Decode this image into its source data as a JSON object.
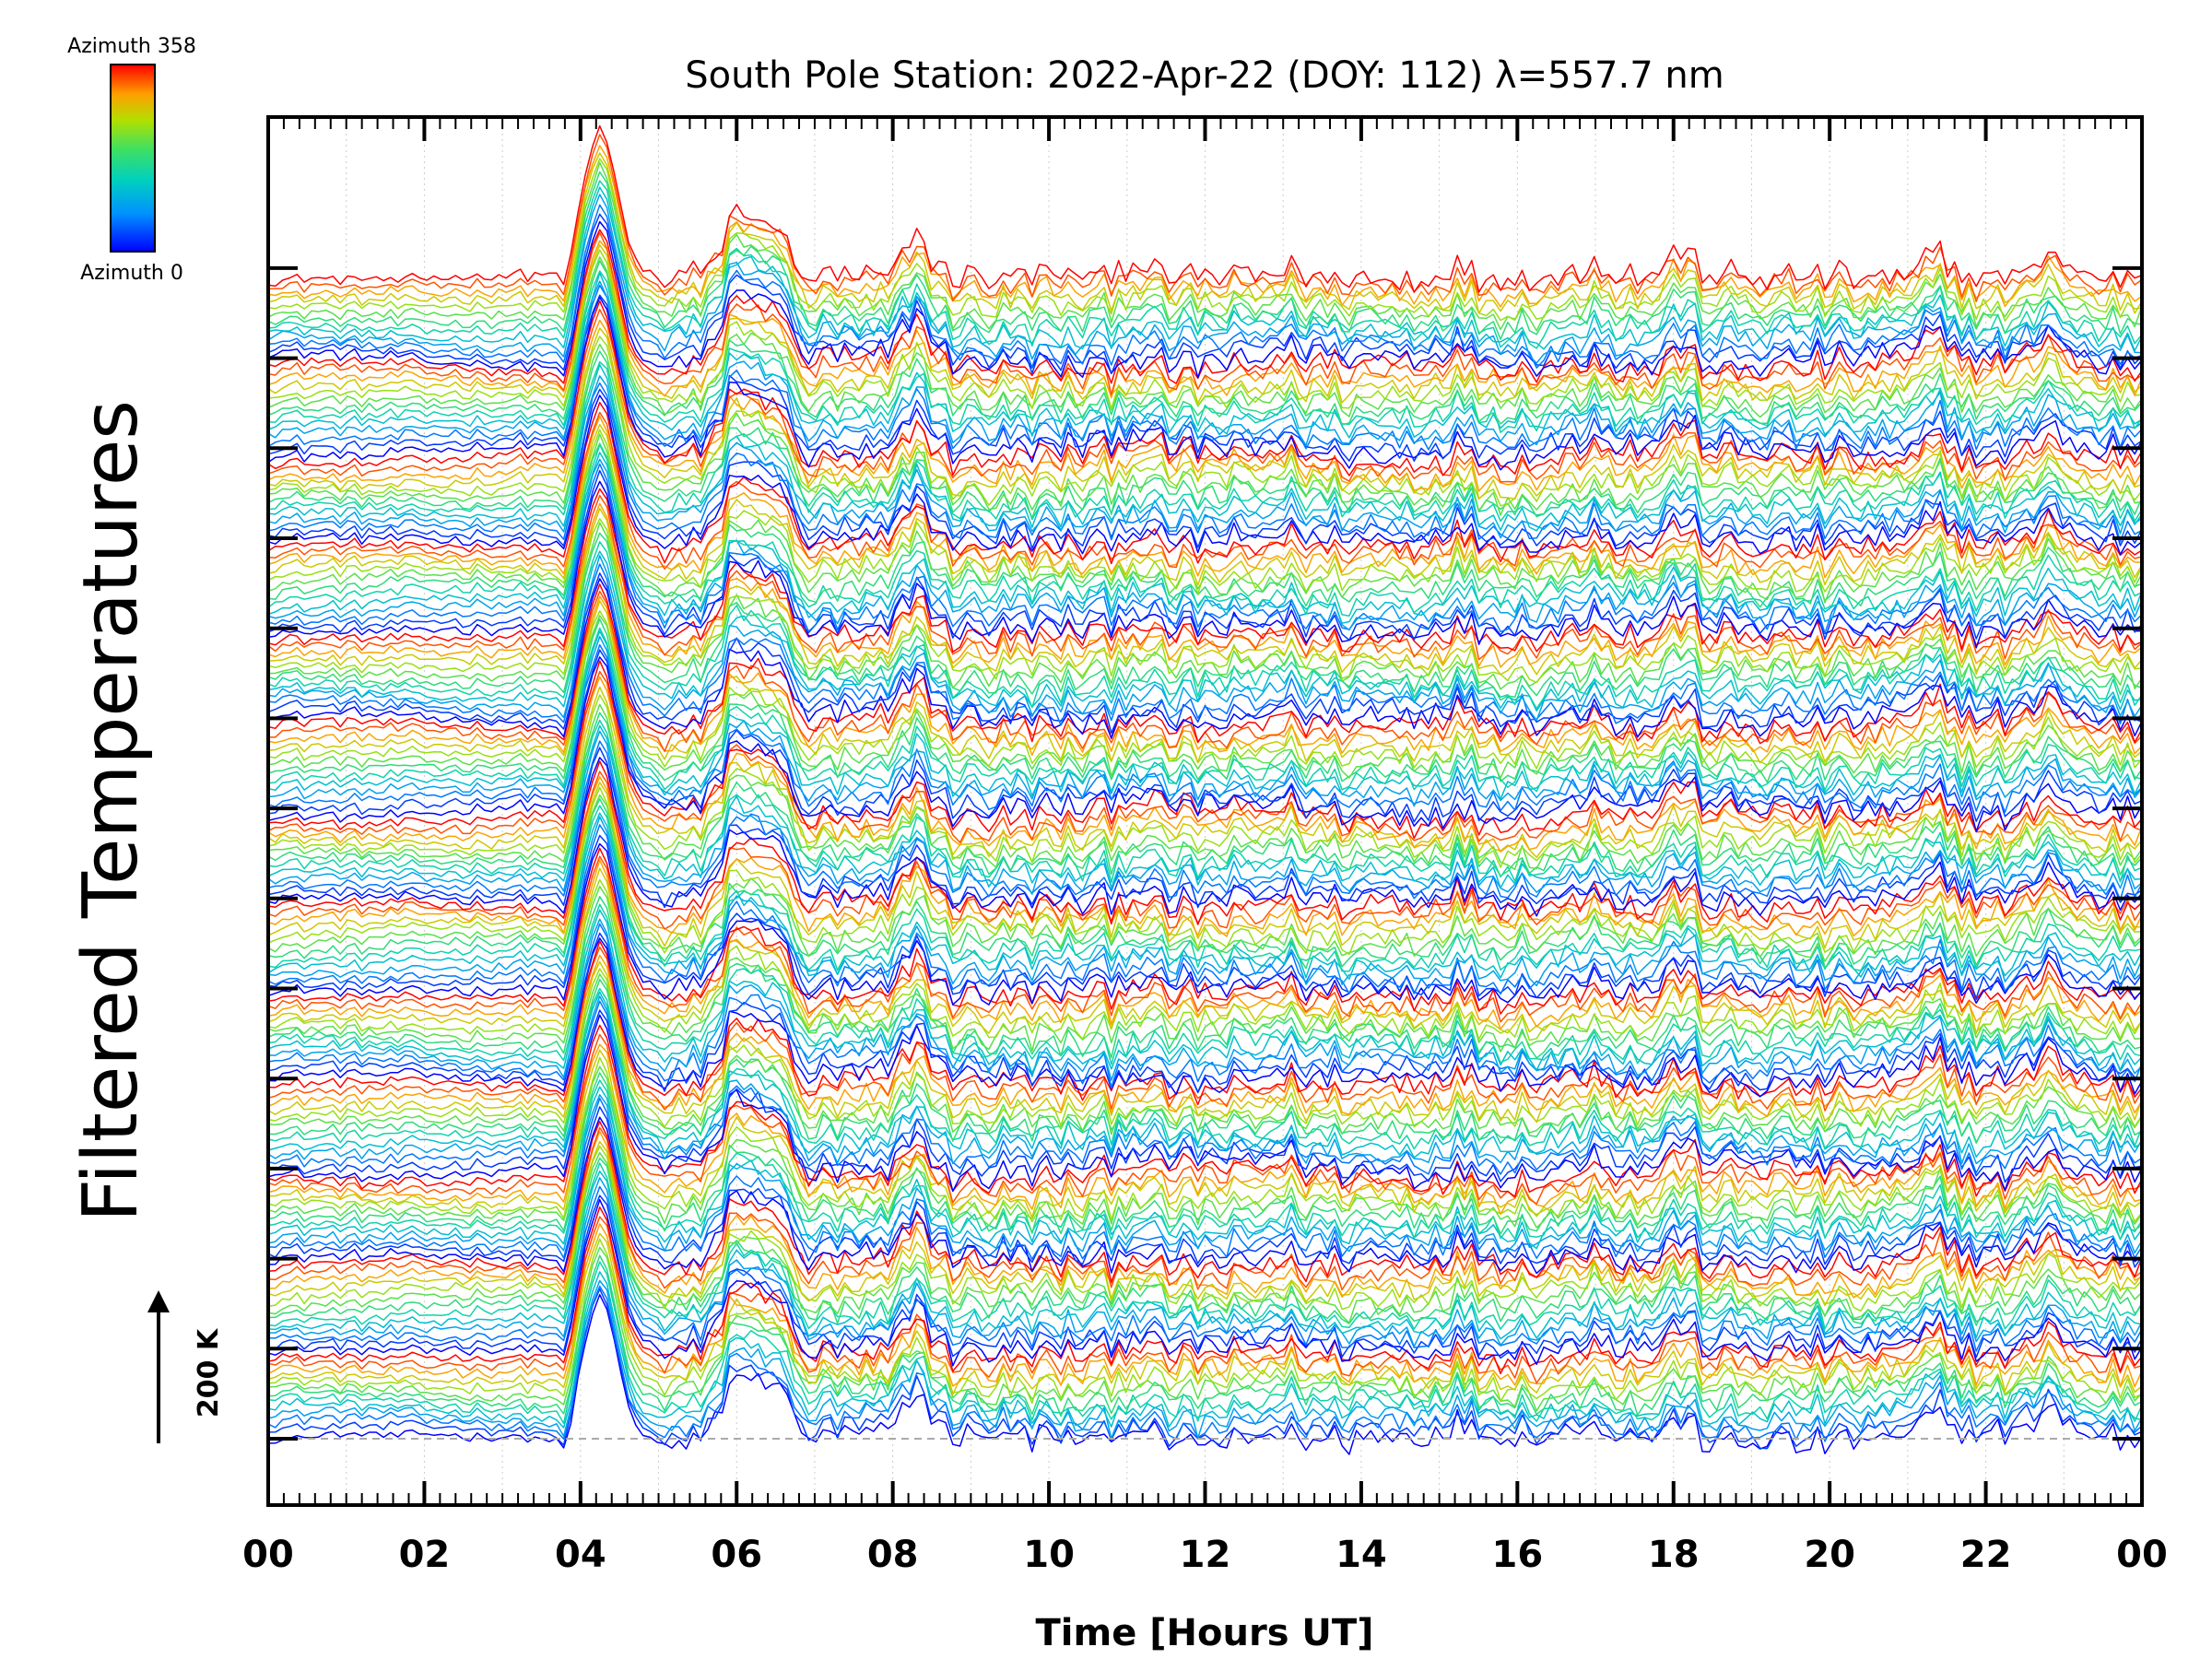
{
  "chart_data": {
    "type": "line",
    "title": "South Pole Station: 2022-Apr-22 (DOY: 112) λ=557.7 nm",
    "xlabel": "Time [Hours UT]",
    "ylabel": "Filtered Temperatures",
    "xlim": [
      0,
      24
    ],
    "x_tick_labels": [
      "00",
      "02",
      "04",
      "06",
      "08",
      "10",
      "12",
      "14",
      "16",
      "18",
      "20",
      "22",
      "00"
    ],
    "y_tick_labels": [],
    "grid": "vertical dotted, hourly",
    "colorbar": {
      "label_top": "Azimuth 358",
      "label_bottom": "Azimuth 0",
      "colormap": "rainbow",
      "range": [
        0,
        358
      ],
      "placement": "top-left"
    },
    "scale_bar": {
      "label": "200 K",
      "value": 200
    },
    "series_structure": {
      "groups": 13,
      "azimuths_per_group": 13,
      "ordering": "stacked bottom to top, each group sweeps azimuth 0 to 358"
    },
    "common_features": [
      {
        "t": 4.25,
        "amplitude": 225
      },
      {
        "t": 6.0,
        "amplitude": 110
      },
      {
        "t": 6.45,
        "amplitude": 100
      },
      {
        "t": 8.3,
        "amplitude": 65
      },
      {
        "t": 11.1,
        "amplitude": 22
      },
      {
        "t": 13.0,
        "amplitude": 18
      },
      {
        "t": 15.2,
        "amplitude": 15
      },
      {
        "t": 17.0,
        "amplitude": 25
      },
      {
        "t": 18.1,
        "amplitude": 35
      },
      {
        "t": 21.4,
        "amplitude": 40
      },
      {
        "t": 22.8,
        "amplitude": 45
      }
    ],
    "colors": {
      "azimuth_0": "#0000ff",
      "azimuth_90": "#00c8c8",
      "azimuth_180": "#aadc00",
      "azimuth_358": "#ff0000",
      "baseline": "#aaaaaa"
    }
  }
}
